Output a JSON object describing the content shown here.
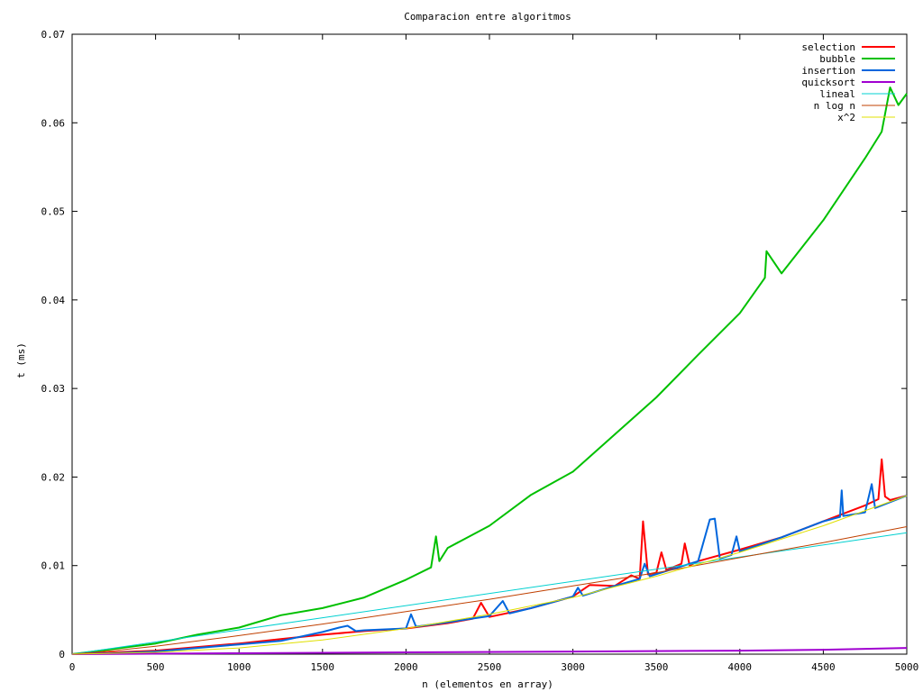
{
  "chart_data": {
    "type": "line",
    "title": "Comparacion entre algoritmos",
    "xlabel": "n (elementos en array)",
    "ylabel": "t (ms)",
    "xlim": [
      0,
      5000
    ],
    "ylim": [
      0,
      0.07
    ],
    "x_ticks": [
      0,
      500,
      1000,
      1500,
      2000,
      2500,
      3000,
      3500,
      4000,
      4500,
      5000
    ],
    "y_ticks": [
      0,
      0.01,
      0.02,
      0.03,
      0.04,
      0.05,
      0.06,
      0.07
    ],
    "x_tick_labels": [
      "0",
      "500",
      "1000",
      "1500",
      "2000",
      "2500",
      "3000",
      "3500",
      "4000",
      "4500",
      "5000"
    ],
    "y_tick_labels": [
      "0",
      "0.01",
      "0.02",
      "0.03",
      "0.04",
      "0.05",
      "0.06",
      "0.07"
    ],
    "grid": false,
    "legend_position": "top-right",
    "series": [
      {
        "name": "selection",
        "color": "#ff0000",
        "x": [
          0,
          250,
          500,
          750,
          1000,
          1250,
          1500,
          1750,
          2000,
          2250,
          2400,
          2450,
          2500,
          2750,
          3000,
          3100,
          3250,
          3350,
          3400,
          3420,
          3450,
          3500,
          3530,
          3560,
          3650,
          3670,
          3700,
          3750,
          4000,
          4250,
          4500,
          4750,
          4830,
          4850,
          4870,
          4900,
          5000
        ],
        "y": [
          0,
          0.0002,
          0.0004,
          0.0008,
          0.0012,
          0.0017,
          0.0022,
          0.0026,
          0.0029,
          0.0035,
          0.004,
          0.0058,
          0.0042,
          0.0052,
          0.0065,
          0.0078,
          0.0077,
          0.0089,
          0.0085,
          0.015,
          0.009,
          0.0092,
          0.0115,
          0.0095,
          0.0102,
          0.0125,
          0.01,
          0.0105,
          0.0118,
          0.0132,
          0.015,
          0.0168,
          0.0175,
          0.022,
          0.0178,
          0.0174,
          0.0179
        ]
      },
      {
        "name": "bubble",
        "color": "#00c000",
        "x": [
          0,
          250,
          500,
          750,
          1000,
          1250,
          1500,
          1750,
          2000,
          2150,
          2180,
          2200,
          2250,
          2500,
          2750,
          3000,
          3250,
          3500,
          3750,
          4000,
          4150,
          4160,
          4250,
          4500,
          4750,
          4850,
          4900,
          4950,
          5000
        ],
        "y": [
          0,
          0.0006,
          0.0012,
          0.0022,
          0.003,
          0.0044,
          0.0052,
          0.0064,
          0.0084,
          0.0098,
          0.0133,
          0.0105,
          0.012,
          0.0145,
          0.018,
          0.0206,
          0.0248,
          0.029,
          0.0338,
          0.0385,
          0.0425,
          0.0455,
          0.043,
          0.049,
          0.056,
          0.059,
          0.064,
          0.062,
          0.0633
        ]
      },
      {
        "name": "insertion",
        "color": "#0066dd",
        "x": [
          0,
          250,
          500,
          750,
          1000,
          1250,
          1500,
          1600,
          1650,
          1700,
          1750,
          2000,
          2030,
          2060,
          2250,
          2500,
          2580,
          2620,
          2750,
          3000,
          3030,
          3060,
          3250,
          3400,
          3430,
          3460,
          3750,
          3820,
          3850,
          3880,
          3950,
          3980,
          4000,
          4250,
          4500,
          4600,
          4610,
          4620,
          4750,
          4790,
          4810,
          5000
        ],
        "y": [
          0,
          0.0001,
          0.0003,
          0.0007,
          0.0011,
          0.0015,
          0.0025,
          0.003,
          0.0032,
          0.0026,
          0.0027,
          0.0029,
          0.0045,
          0.0031,
          0.0036,
          0.0043,
          0.006,
          0.0046,
          0.0052,
          0.0065,
          0.0075,
          0.0066,
          0.0077,
          0.0085,
          0.0102,
          0.0088,
          0.0105,
          0.0152,
          0.0153,
          0.0108,
          0.0112,
          0.0133,
          0.0116,
          0.0132,
          0.015,
          0.0155,
          0.0185,
          0.0156,
          0.016,
          0.0192,
          0.0165,
          0.0179
        ]
      },
      {
        "name": "quicksort",
        "color": "#a000d0",
        "x": [
          0,
          1000,
          2000,
          3000,
          4000,
          4500,
          5000
        ],
        "y": [
          0,
          0.0001,
          0.0002,
          0.0003,
          0.0004,
          0.0005,
          0.0007
        ]
      },
      {
        "name": "lineal",
        "color": "#00d0d0",
        "x": [
          0,
          5000
        ],
        "y": [
          0,
          0.0137
        ]
      },
      {
        "name": "n log n",
        "color": "#c04000",
        "x": [
          0,
          250,
          500,
          1000,
          1500,
          2000,
          2500,
          3000,
          3500,
          4000,
          4500,
          5000
        ],
        "y": [
          0,
          0.0004,
          0.0009,
          0.0021,
          0.0034,
          0.0048,
          0.0062,
          0.0077,
          0.0092,
          0.0109,
          0.0126,
          0.0144
        ]
      },
      {
        "name": "x^2",
        "color": "#e0e000",
        "x": [
          0,
          500,
          1000,
          1500,
          2000,
          2500,
          3000,
          3500,
          4000,
          4500,
          5000
        ],
        "y": [
          0,
          0.0002,
          0.0007,
          0.0016,
          0.0029,
          0.0045,
          0.0064,
          0.0088,
          0.0115,
          0.0145,
          0.0179
        ]
      }
    ]
  }
}
